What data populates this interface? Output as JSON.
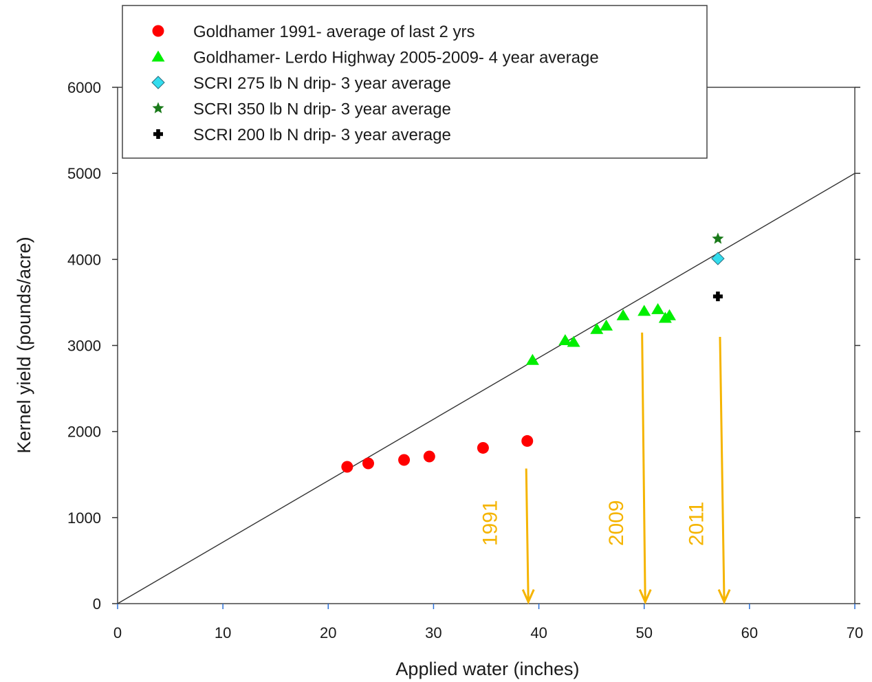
{
  "chart_data": {
    "type": "scatter",
    "xlabel": "Applied water (inches)",
    "ylabel": "Kernel yield (pounds/acre)",
    "xlim": [
      0,
      70
    ],
    "ylim": [
      0,
      6000
    ],
    "x_ticks": [
      "0",
      "10",
      "20",
      "30",
      "40",
      "50",
      "60",
      "70"
    ],
    "y_ticks": [
      "0",
      "1000",
      "2000",
      "3000",
      "4000",
      "5000",
      "6000"
    ],
    "grid": false,
    "legend_position": "top",
    "series": [
      {
        "name": "Goldhamer 1991- average of last 2 yrs",
        "marker": "circle",
        "color": "#ff0000",
        "points": [
          [
            21.8,
            1590
          ],
          [
            23.8,
            1630
          ],
          [
            27.2,
            1670
          ],
          [
            29.6,
            1710
          ],
          [
            34.7,
            1810
          ],
          [
            38.9,
            1890
          ]
        ]
      },
      {
        "name": "Goldhamer- Lerdo Highway 2005-2009- 4 year average",
        "marker": "triangle",
        "color": "#00ee00",
        "points": [
          [
            39.4,
            2830
          ],
          [
            42.5,
            3060
          ],
          [
            43.3,
            3040
          ],
          [
            45.5,
            3190
          ],
          [
            46.4,
            3230
          ],
          [
            48.0,
            3350
          ],
          [
            50.0,
            3400
          ],
          [
            51.3,
            3420
          ],
          [
            52.0,
            3320
          ],
          [
            52.4,
            3350
          ]
        ]
      },
      {
        "name": "SCRI 275 lb N drip- 3 year average",
        "marker": "diamond",
        "color": "#33ddee",
        "points": [
          [
            57.0,
            4010
          ]
        ]
      },
      {
        "name": "SCRI 350 lb N drip- 3 year average",
        "marker": "star",
        "color": "#1a7a1a",
        "points": [
          [
            57.0,
            4240
          ]
        ]
      },
      {
        "name": "SCRI 200 lb N drip- 3 year average",
        "marker": "cross",
        "color": "#000000",
        "points": [
          [
            57.0,
            3570
          ]
        ]
      }
    ],
    "reference_line": {
      "color": "#333333",
      "points": [
        [
          0,
          0
        ],
        [
          70,
          5000
        ]
      ]
    },
    "annotations": [
      {
        "text": "1991",
        "color": "#f5b400",
        "arrow_from": [
          38.8,
          1570
        ],
        "arrow_to": [
          39.0,
          20
        ],
        "label_at": [
          36.0,
          670
        ]
      },
      {
        "text": "2009",
        "color": "#f5b400",
        "arrow_from": [
          49.8,
          3150
        ],
        "arrow_to": [
          50.1,
          20
        ],
        "label_at": [
          48.0,
          670
        ]
      },
      {
        "text": "2011",
        "color": "#f5b400",
        "arrow_from": [
          57.2,
          3100
        ],
        "arrow_to": [
          57.6,
          20
        ],
        "label_at": [
          55.6,
          670
        ]
      }
    ]
  }
}
